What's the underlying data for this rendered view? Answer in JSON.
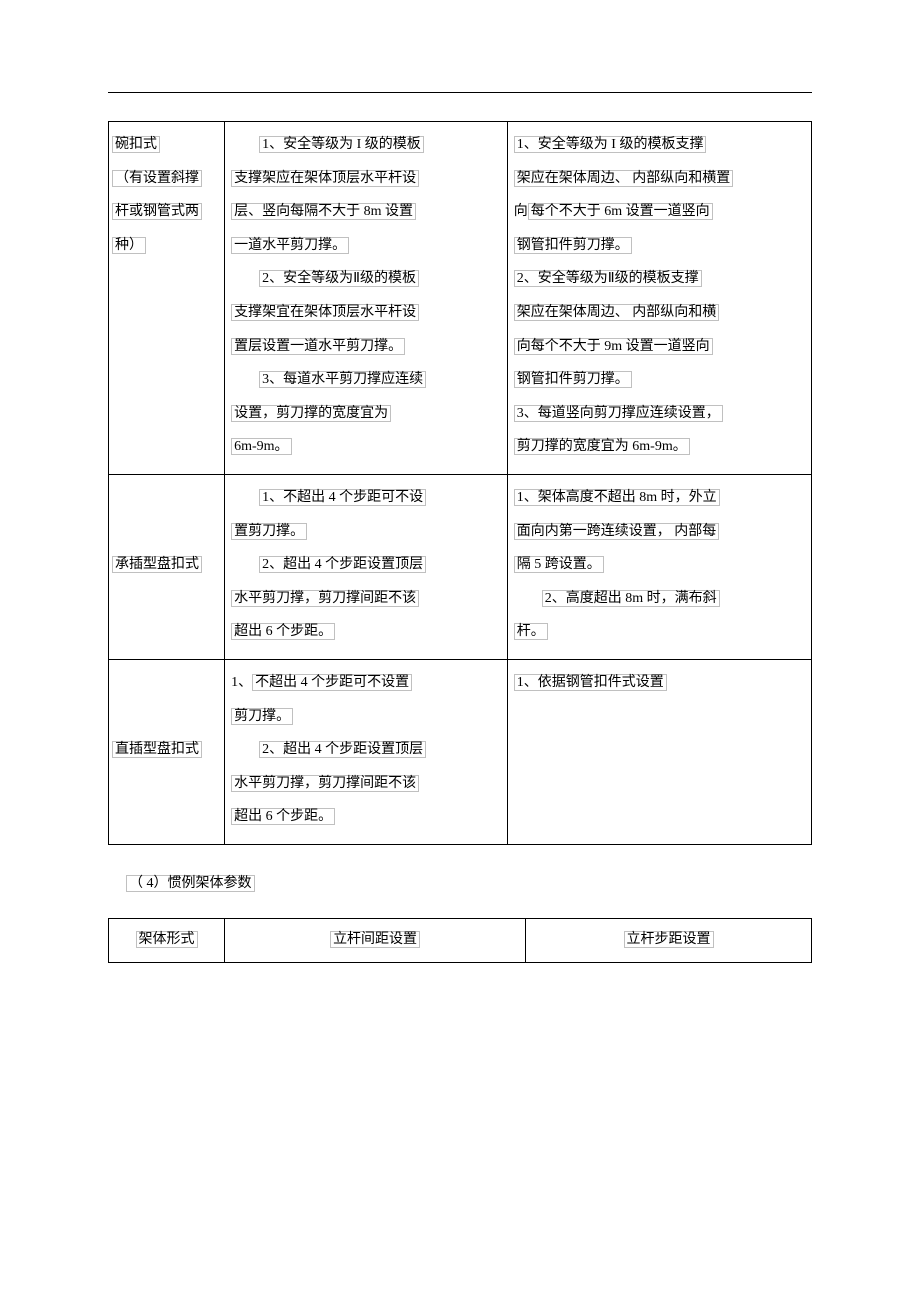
{
  "table1": {
    "rows": [
      {
        "c1_lines": [
          {
            "t": "碗扣式",
            "hl": true,
            "indent": false
          },
          {
            "t": " ",
            "hl": false,
            "indent": false
          },
          {
            "t": "（有设置斜撑",
            "hl": true,
            "indent": false
          },
          {
            "t": "杆或钢管式两",
            "hl": true,
            "indent": false
          },
          {
            "segments": [
              {
                "t": "种）",
                "hl": true
              },
              {
                "t": "",
                "hl": false
              }
            ],
            "indent": false
          }
        ],
        "c2_lines": [
          {
            "segments": [
              {
                "t": "1、安全等级为 I 级的模板",
                "hl": true
              }
            ],
            "indent": true
          },
          {
            "segments": [
              {
                "t": "支撑架应在架体顶层水平杆设",
                "hl": true
              }
            ],
            "indent": false
          },
          {
            "segments": [
              {
                "t": "层、竖向每隔不大于 8m 设置",
                "hl": true
              }
            ],
            "indent": false
          },
          {
            "segments": [
              {
                "t": "一道水平剪刀撑。",
                "hl": true
              }
            ],
            "indent": false
          },
          {
            "segments": [
              {
                "t": " ",
                "hl": false
              }
            ],
            "indent": false
          },
          {
            "segments": [
              {
                "t": "2、安全等级为Ⅱ级的模板",
                "hl": true
              }
            ],
            "indent": true
          },
          {
            "segments": [
              {
                "t": "支撑架宜在架体顶层水平杆设",
                "hl": true
              }
            ],
            "indent": false
          },
          {
            "segments": [
              {
                "t": "置层设置一道水平剪刀撑。",
                "hl": true
              }
            ],
            "indent": false
          },
          {
            "segments": [
              {
                "t": " ",
                "hl": false
              }
            ],
            "indent": false
          },
          {
            "segments": [
              {
                "t": "3、每道水平剪刀撑应连续",
                "hl": true
              }
            ],
            "indent": true
          },
          {
            "segments": [
              {
                "t": "设置，剪刀撑的宽度宜为",
                "hl": true
              }
            ],
            "indent": false
          },
          {
            "segments": [
              {
                "t": "6m-9m。",
                "hl": true
              }
            ],
            "indent": false
          }
        ],
        "c3_lines": [
          {
            "segments": [
              {
                "t": "1、安全等级为 I 级的模板支撑",
                "hl": true
              }
            ],
            "indent": false
          },
          {
            "segments": [
              {
                "t": " ",
                "hl": false
              }
            ],
            "indent": false
          },
          {
            "segments": [
              {
                "t": "架应在架体周边、 内部纵向和横置",
                "hl": true
              }
            ],
            "indent": false
          },
          {
            "segments": [
              {
                "t": "向",
                "hl": false
              },
              {
                "t": "每个不大于 6m 设置一道竖向",
                "hl": true
              }
            ],
            "indent": false
          },
          {
            "segments": [
              {
                "t": "钢管扣件剪刀撑。",
                "hl": true
              }
            ],
            "indent": false
          },
          {
            "segments": [
              {
                "t": " ",
                "hl": false
              }
            ],
            "indent": false
          },
          {
            "segments": [
              {
                "t": "2、安全等级为Ⅱ级的模板支撑",
                "hl": true
              }
            ],
            "indent": false
          },
          {
            "segments": [
              {
                "t": "架应在架体周边、 内部纵向和横",
                "hl": true
              }
            ],
            "indent": false
          },
          {
            "segments": [
              {
                "t": "向每个不大于 9m 设置一道竖向",
                "hl": true
              }
            ],
            "indent": false
          },
          {
            "segments": [
              {
                "t": "钢管扣件剪刀撑。",
                "hl": true
              }
            ],
            "indent": false
          },
          {
            "segments": [
              {
                "t": " ",
                "hl": false
              }
            ],
            "indent": false
          },
          {
            "segments": [
              {
                "t": "3、每道竖向剪刀撑应连续设置，",
                "hl": true
              }
            ],
            "indent": false
          },
          {
            "segments": [
              {
                "t": "剪刀撑的宽度宜为 6m-9m。",
                "hl": true
              }
            ],
            "indent": false
          }
        ]
      },
      {
        "c1_lines": [
          {
            "t": "承插型盘扣式",
            "hl": true,
            "indent": false
          }
        ],
        "c2_lines": [
          {
            "segments": [
              {
                "t": "1、不超出 4 个步距可不设",
                "hl": true
              }
            ],
            "indent": true
          },
          {
            "segments": [
              {
                "t": "置剪刀撑。",
                "hl": true
              }
            ],
            "indent": false
          },
          {
            "segments": [
              {
                "t": " ",
                "hl": false
              }
            ],
            "indent": false
          },
          {
            "segments": [
              {
                "t": "2、超出 4 个步距设置顶层",
                "hl": true
              }
            ],
            "indent": true
          },
          {
            "segments": [
              {
                "t": "水平剪刀撑，剪刀撑间距不该",
                "hl": true
              }
            ],
            "indent": false
          },
          {
            "segments": [
              {
                "t": "超出 6 个步距。",
                "hl": true
              }
            ],
            "indent": false
          }
        ],
        "c3_lines": [
          {
            "segments": [
              {
                "t": "1、架体高度不超出 8m 时，外立",
                "hl": true
              }
            ],
            "indent": false
          },
          {
            "segments": [
              {
                "t": "面向内第一跨连续设置， 内部每",
                "hl": true
              }
            ],
            "indent": false
          },
          {
            "segments": [
              {
                "t": "隔 5 跨设置。",
                "hl": true
              }
            ],
            "indent": false
          },
          {
            "segments": [
              {
                "t": " ",
                "hl": false
              }
            ],
            "indent": false
          },
          {
            "segments": [
              {
                "t": "2、高度超出 8m 时，满布斜",
                "hl": true
              }
            ],
            "indent": true
          },
          {
            "segments": [
              {
                "t": "杆。",
                "hl": true
              }
            ],
            "indent": false
          }
        ]
      },
      {
        "c1_lines": [
          {
            "t": "直插型盘扣式",
            "hl": true,
            "indent": false
          }
        ],
        "c2_lines": [
          {
            "segments": [
              {
                "t": "1、",
                "hl": false
              },
              {
                "t": "不超出 4 个步距可不设置",
                "hl": true
              }
            ],
            "indent": false
          },
          {
            "segments": [
              {
                "t": "剪刀撑。",
                "hl": true
              }
            ],
            "indent": false
          },
          {
            "segments": [
              {
                "t": " ",
                "hl": false
              }
            ],
            "indent": false
          },
          {
            "segments": [
              {
                "t": "2、超出 4 个步距设置顶层",
                "hl": true
              }
            ],
            "indent": true
          },
          {
            "segments": [
              {
                "t": "水平剪刀撑，剪刀撑间距不该",
                "hl": true
              }
            ],
            "indent": false
          },
          {
            "segments": [
              {
                "t": "超出 6 个步距。",
                "hl": true
              }
            ],
            "indent": false
          }
        ],
        "c3_lines": [
          {
            "segments": [
              {
                "t": "1、依据钢管扣件式设置",
                "hl": true
              }
            ],
            "indent": false
          }
        ]
      }
    ]
  },
  "section_title": "（ 4）惯例架体参数",
  "table2": {
    "headers": [
      "架体形式",
      "立杆间距设置",
      "立杆步距设置"
    ]
  }
}
